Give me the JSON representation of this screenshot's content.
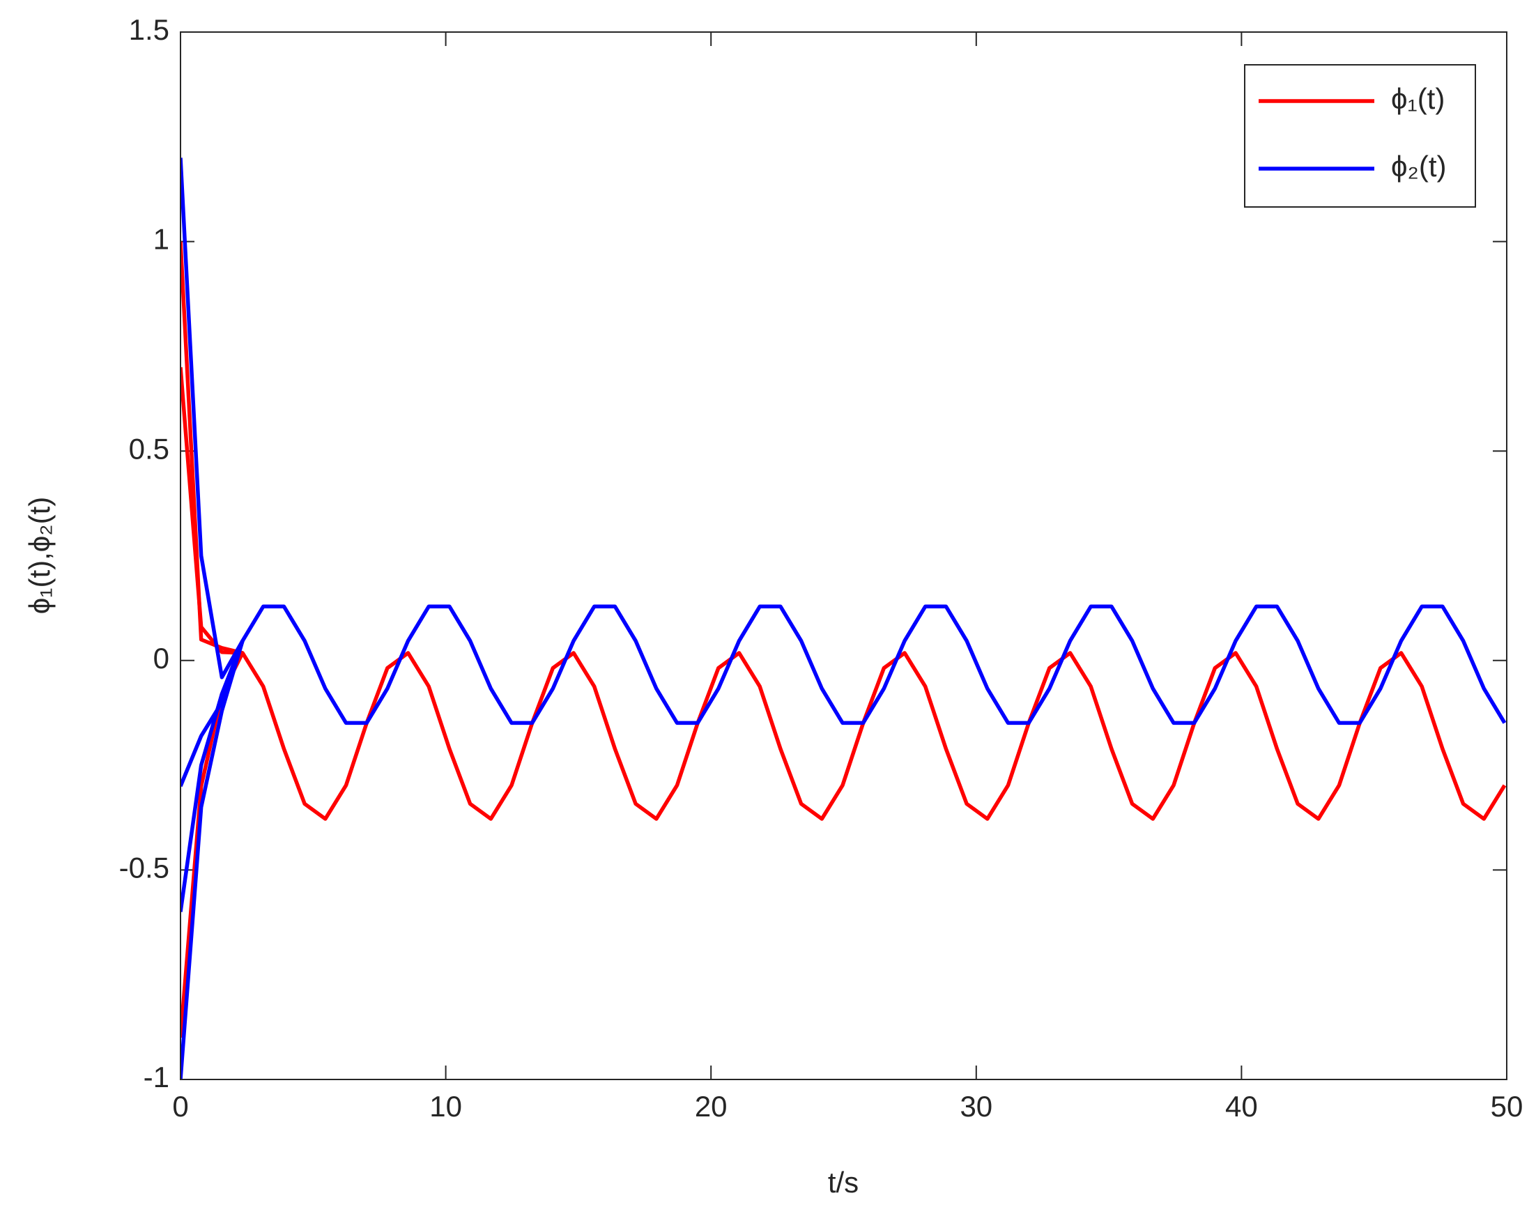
{
  "chart_data": {
    "type": "line",
    "x_label": "t/s",
    "y_label": "ϕ₁(t),ϕ₂(t)",
    "x": [
      0,
      0.78,
      1.56,
      2.34,
      3.12,
      3.9,
      4.68,
      5.46,
      6.24,
      7.02,
      7.8,
      8.58,
      9.36,
      10.14,
      10.92,
      11.7,
      12.48,
      13.26,
      14.04,
      14.82,
      15.6,
      16.38,
      17.16,
      17.94,
      18.72,
      19.5,
      20.28,
      21.06,
      21.84,
      22.62,
      23.4,
      24.18,
      24.96,
      25.74,
      26.52,
      27.3,
      28.08,
      28.86,
      29.64,
      30.42,
      31.2,
      31.98,
      32.76,
      33.54,
      34.32,
      35.1,
      35.88,
      36.66,
      37.44,
      38.22,
      39,
      39.78,
      40.56,
      41.34,
      42.12,
      42.9,
      43.68,
      44.46,
      45.24,
      46.02,
      46.8,
      47.58,
      48.36,
      49.14,
      49.92
    ],
    "series": [
      {
        "name": "ϕ₁(t)",
        "color": "#ff0000",
        "values": [
          1.0,
          0.05,
          0.03,
          0.018,
          -0.062,
          -0.211,
          -0.342,
          -0.378,
          -0.298,
          -0.149,
          -0.018,
          0.018,
          -0.062,
          -0.211,
          -0.342,
          -0.378,
          -0.298,
          -0.149,
          -0.018,
          0.018,
          -0.062,
          -0.211,
          -0.342,
          -0.378,
          -0.298,
          -0.149,
          -0.018,
          0.018,
          -0.062,
          -0.211,
          -0.342,
          -0.378,
          -0.298,
          -0.149,
          -0.018,
          0.018,
          -0.062,
          -0.211,
          -0.342,
          -0.378,
          -0.298,
          -0.149,
          -0.018,
          0.018,
          -0.062,
          -0.211,
          -0.342,
          -0.378,
          -0.298,
          -0.149,
          -0.018,
          0.018,
          -0.062,
          -0.211,
          -0.342,
          -0.378,
          -0.298,
          -0.149,
          -0.018,
          0.018,
          -0.062,
          -0.211,
          -0.342,
          -0.378,
          -0.298
        ],
        "transients": [
          [
            0.7,
            0.08,
            0.02,
            0.018
          ],
          [
            -0.9,
            -0.3,
            -0.08,
            0.018
          ]
        ]
      },
      {
        "name": "ϕ₂(t)",
        "color": "#0000ff",
        "values": [
          1.2,
          0.25,
          -0.04,
          0.047,
          0.129,
          0.129,
          0.047,
          -0.067,
          -0.149,
          -0.149,
          -0.067,
          0.047,
          0.129,
          0.129,
          0.047,
          -0.067,
          -0.149,
          -0.149,
          -0.067,
          0.047,
          0.129,
          0.129,
          0.047,
          -0.067,
          -0.149,
          -0.149,
          -0.067,
          0.047,
          0.129,
          0.129,
          0.047,
          -0.067,
          -0.149,
          -0.149,
          -0.067,
          0.047,
          0.129,
          0.129,
          0.047,
          -0.067,
          -0.149,
          -0.149,
          -0.067,
          0.047,
          0.129,
          0.129,
          0.047,
          -0.067,
          -0.149,
          -0.149,
          -0.067,
          0.047,
          0.129,
          0.129,
          0.047,
          -0.067,
          -0.149,
          -0.149,
          -0.067,
          0.047,
          0.129,
          0.129,
          0.047,
          -0.067,
          -0.149
        ],
        "transients": [
          [
            -0.3,
            -0.18,
            -0.1,
            0.047
          ],
          [
            -0.6,
            -0.25,
            -0.08,
            0.047
          ],
          [
            -1.0,
            -0.35,
            -0.12,
            0.047
          ]
        ]
      }
    ],
    "xlim": [
      0,
      50
    ],
    "xticks": [
      0,
      10,
      20,
      30,
      40,
      50
    ],
    "ylim": [
      -1,
      1.5
    ],
    "yticks": [
      -1,
      -0.5,
      0,
      0.5,
      1,
      1.5
    ],
    "grid": false,
    "legend": "upper right"
  }
}
